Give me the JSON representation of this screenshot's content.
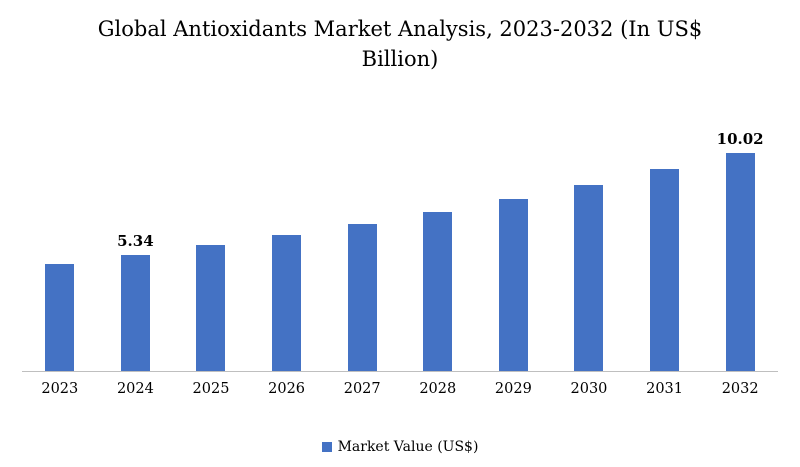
{
  "chart_data": {
    "type": "bar",
    "title": "Global Antioxidants Market Analysis, 2023-2032 (In US$ Billion)",
    "categories": [
      "2023",
      "2024",
      "2025",
      "2026",
      "2027",
      "2028",
      "2029",
      "2030",
      "2031",
      "2032"
    ],
    "values": [
      4.94,
      5.34,
      5.78,
      6.25,
      6.76,
      7.32,
      7.92,
      8.57,
      9.27,
      10.02
    ],
    "data_labels": {
      "2024": "5.34",
      "2032": "10.02"
    },
    "legend": "Market Value (US$)",
    "bar_color": "#4472C4",
    "axis_color": "#bfbfbf",
    "xlabel": "",
    "ylabel": "",
    "ylim": [
      0,
      12.5
    ],
    "grid": false,
    "legend_position": "bottom"
  }
}
